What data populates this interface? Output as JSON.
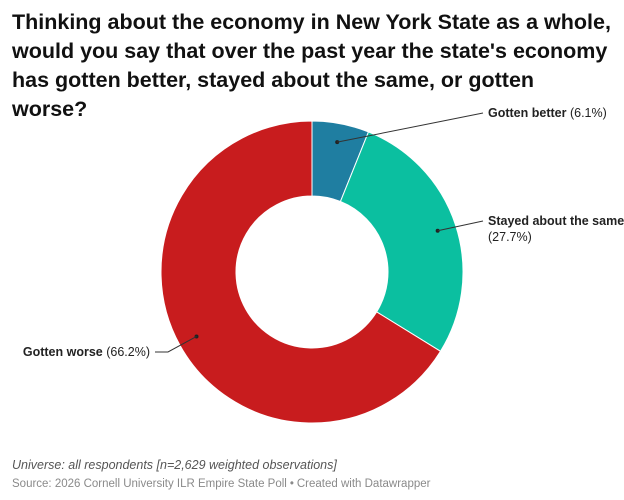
{
  "chart_data": {
    "type": "pie",
    "donut": true,
    "title": "Thinking about the economy in New York State as a whole, would you say that over the past year the state's economy has gotten better, stayed about the same, or gotten worse?",
    "categories": [
      "Gotten better",
      "Stayed about the same",
      "Gotten worse"
    ],
    "values": [
      6.1,
      27.7,
      66.2
    ],
    "value_labels": [
      "(6.1%)",
      "(27.7%)",
      "(66.2%)"
    ],
    "colors": [
      "#1f7ea1",
      "#0bbfa0",
      "#c81c1e"
    ]
  },
  "footer": {
    "notes": "Universe: all respondents [n=2,629 weighted observations]",
    "source": "Source: 2026 Cornell University ILR Empire State Poll",
    "separator": "•",
    "credit": "Created with Datawrapper"
  }
}
